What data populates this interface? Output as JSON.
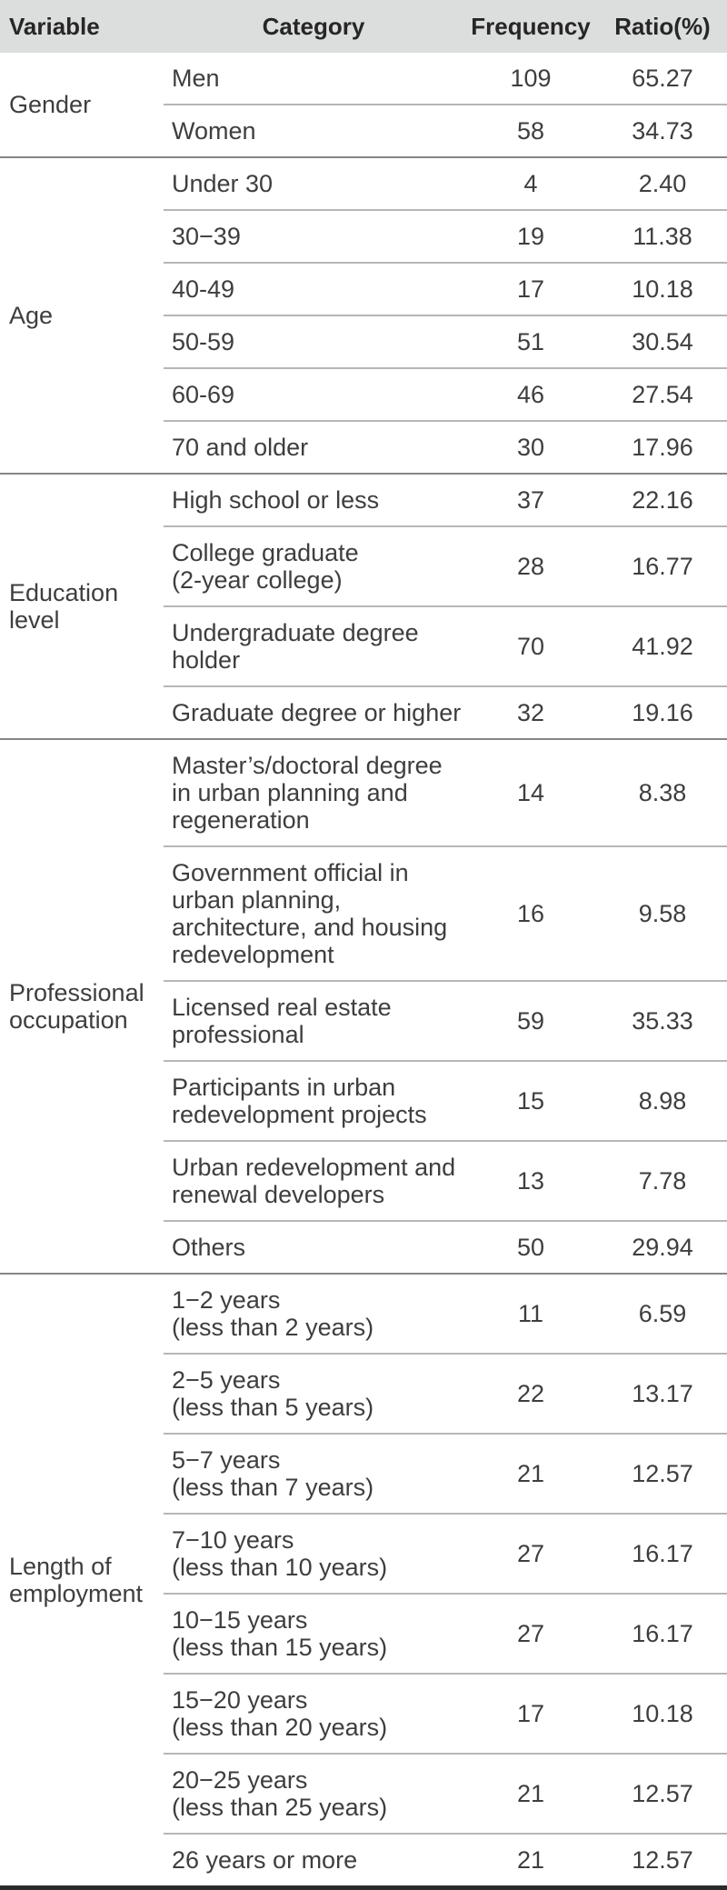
{
  "header": {
    "variable": "Variable",
    "category": "Category",
    "frequency": "Frequency",
    "ratio": "Ratio(%)"
  },
  "sections": [
    {
      "variable": "Gender",
      "rows": [
        {
          "category": "Men",
          "frequency": "109",
          "ratio": "65.27"
        },
        {
          "category": "Women",
          "frequency": "58",
          "ratio": "34.73"
        }
      ]
    },
    {
      "variable": "Age",
      "rows": [
        {
          "category": "Under 30",
          "frequency": "4",
          "ratio": "2.40"
        },
        {
          "category": "30−39",
          "frequency": "19",
          "ratio": "11.38"
        },
        {
          "category": "40-49",
          "frequency": "17",
          "ratio": "10.18"
        },
        {
          "category": "50-59",
          "frequency": "51",
          "ratio": "30.54"
        },
        {
          "category": "60-69",
          "frequency": "46",
          "ratio": "27.54"
        },
        {
          "category": "70 and older",
          "frequency": "30",
          "ratio": "17.96"
        }
      ]
    },
    {
      "variable": "Education\nlevel",
      "rows": [
        {
          "category": "High school or less",
          "frequency": "37",
          "ratio": "22.16"
        },
        {
          "category": "College graduate\n(2-year college)",
          "frequency": "28",
          "ratio": "16.77"
        },
        {
          "category": "Undergraduate degree\nholder",
          "frequency": "70",
          "ratio": "41.92"
        },
        {
          "category": "Graduate degree or higher",
          "frequency": "32",
          "ratio": "19.16"
        }
      ]
    },
    {
      "variable": "Professional\noccupation",
      "rows": [
        {
          "category": "Master’s/doctoral degree\nin urban planning and\nregeneration",
          "frequency": "14",
          "ratio": "8.38"
        },
        {
          "category": "Government official in\nurban planning,\narchitecture, and housing\nredevelopment",
          "frequency": "16",
          "ratio": "9.58"
        },
        {
          "category": "Licensed real estate\nprofessional",
          "frequency": "59",
          "ratio": "35.33"
        },
        {
          "category": "Participants in urban\nredevelopment projects",
          "frequency": "15",
          "ratio": "8.98"
        },
        {
          "category": "Urban redevelopment and\nrenewal developers",
          "frequency": "13",
          "ratio": "7.78"
        },
        {
          "category": "Others",
          "frequency": "50",
          "ratio": "29.94"
        }
      ]
    },
    {
      "variable": "Length of\nemployment",
      "rows": [
        {
          "category": "1−2 years\n(less than 2 years)",
          "frequency": "11",
          "ratio": "6.59"
        },
        {
          "category": "2−5 years\n(less than 5 years)",
          "frequency": "22",
          "ratio": "13.17"
        },
        {
          "category": "5−7 years\n(less than 7 years)",
          "frequency": "21",
          "ratio": "12.57"
        },
        {
          "category": "7−10 years\n(less than 10 years)",
          "frequency": "27",
          "ratio": "16.17"
        },
        {
          "category": "10−15 years\n(less than 15 years)",
          "frequency": "27",
          "ratio": "16.17"
        },
        {
          "category": "15−20 years\n(less than 20 years)",
          "frequency": "17",
          "ratio": "10.18"
        },
        {
          "category": "20−25 years\n(less than 25 years)",
          "frequency": "21",
          "ratio": "12.57"
        },
        {
          "category": "26 years or more",
          "frequency": "21",
          "ratio": "12.57"
        }
      ]
    }
  ],
  "colors": {
    "header_bg": "#dcdddd",
    "header_text": "#262626",
    "body_text": "#3e3e3e",
    "row_separator": "#b6b6b6",
    "section_separator": "#868686",
    "bottom_rule": "#2b2b2b"
  }
}
